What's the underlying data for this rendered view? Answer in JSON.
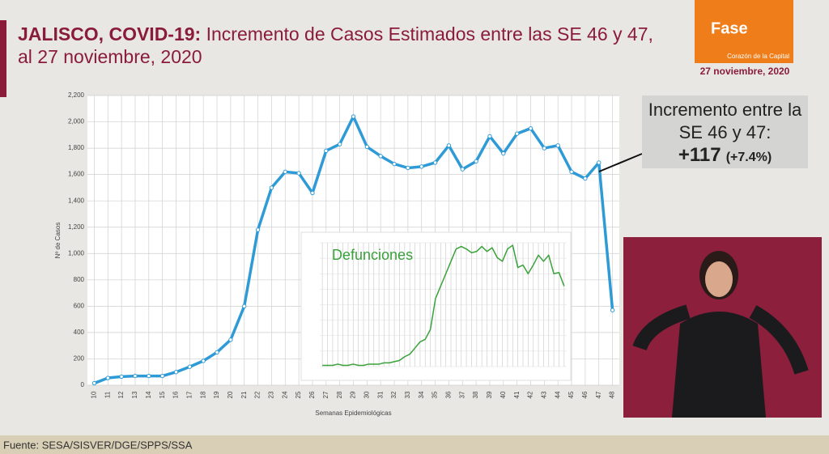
{
  "header": {
    "title_bold": "JALISCO, COVID-19:",
    "title": "Incremento de Casos Estimados entre las SE 46 y 47, al 27 noviembre, 2020",
    "logo": "Corazón de la Capital",
    "date": "27 noviembre, 2020"
  },
  "annotation": {
    "text": "Incremento entre la SE 46 y 47:",
    "value": "+117",
    "percent": "(+7.4%)"
  },
  "footer": "Fuente: SESA/SISVER/DGE/SPPS/SSA",
  "chart_data": [
    {
      "type": "line",
      "x_label": "Semanas Epidemiológicas",
      "y_label": "Nº de Casos",
      "color": "#2e9ad6",
      "grid": true,
      "categories": [
        "10",
        "11",
        "12",
        "13",
        "14",
        "15",
        "16",
        "17",
        "18",
        "19",
        "20",
        "21",
        "22",
        "23",
        "24",
        "25",
        "26",
        "27",
        "28",
        "29",
        "30",
        "31",
        "32",
        "33",
        "34",
        "35",
        "36",
        "37",
        "38",
        "39",
        "40",
        "41",
        "42",
        "43",
        "44",
        "45",
        "46",
        "47",
        "48"
      ],
      "values": [
        15,
        55,
        65,
        70,
        70,
        70,
        100,
        140,
        185,
        250,
        345,
        600,
        1180,
        1500,
        1620,
        1610,
        1460,
        1780,
        1830,
        2040,
        1810,
        1740,
        1680,
        1650,
        1660,
        1690,
        1820,
        1640,
        1700,
        1890,
        1760,
        1910,
        1950,
        1800,
        1820,
        1620,
        1570,
        1690,
        570
      ],
      "ylim": [
        0,
        2200
      ],
      "yticks": [
        0,
        200,
        400,
        600,
        800,
        {
          "value": 1000,
          "label": "1,000"
        },
        {
          "value": 1200,
          "label": "1,200"
        },
        {
          "value": 1400,
          "label": "1,400"
        },
        {
          "value": 1600,
          "label": "1,600"
        },
        {
          "value": 1800,
          "label": "1,800"
        },
        {
          "value": 2000,
          "label": "2,000"
        },
        {
          "value": 2200,
          "label": "2,200"
        }
      ]
    },
    {
      "type": "line",
      "title": "Defunciones",
      "color": "#3aa23a",
      "grid": true,
      "values": [
        1,
        1,
        1,
        2,
        1,
        1,
        2,
        1,
        1,
        2,
        2,
        2,
        3,
        3,
        4,
        5,
        8,
        10,
        15,
        20,
        22,
        30,
        55,
        65,
        75,
        85,
        95,
        97,
        95,
        92,
        93,
        97,
        93,
        96,
        88,
        85,
        95,
        98,
        80,
        82,
        75,
        82,
        90,
        85,
        90,
        75,
        76,
        65
      ],
      "ylim": [
        0,
        100
      ]
    }
  ]
}
